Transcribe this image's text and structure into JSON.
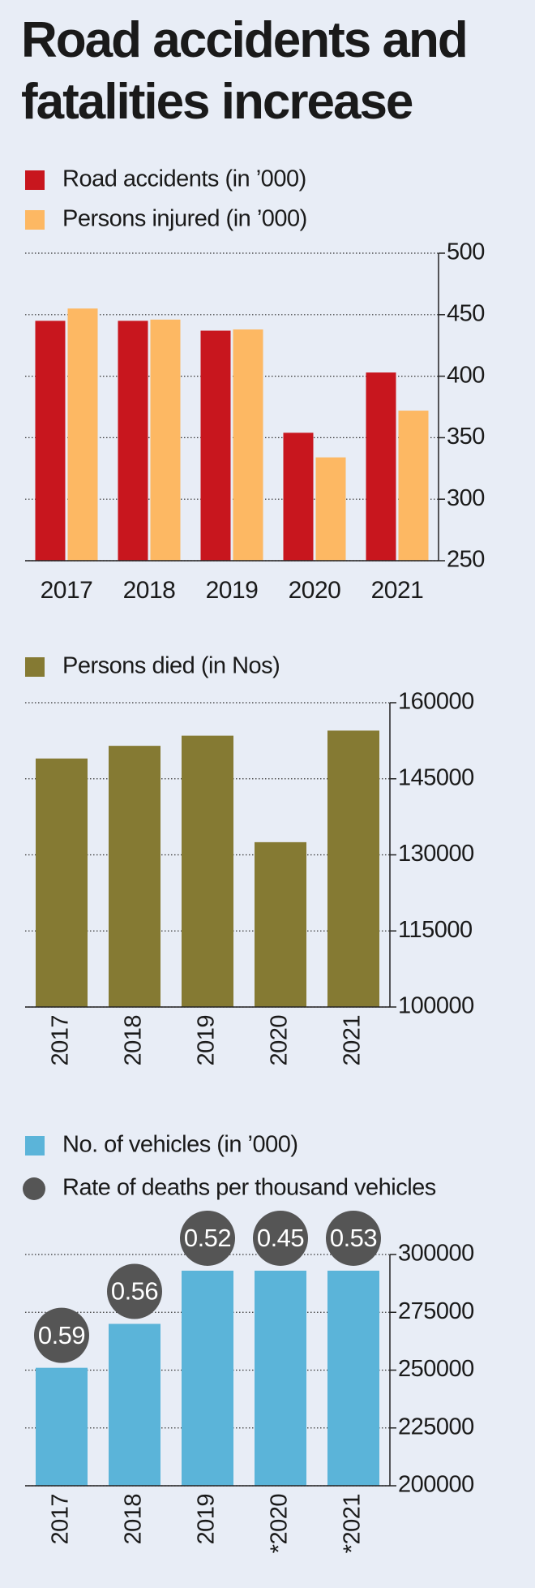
{
  "title": "Road accidents and fatalities increase",
  "chart_data": [
    {
      "type": "bar",
      "categories": [
        "2017",
        "2018",
        "2019",
        "2020",
        "2021"
      ],
      "series": [
        {
          "name": "Road accidents (in ’000)",
          "color": "#c8161e",
          "values": [
            445,
            445,
            437,
            354,
            403
          ]
        },
        {
          "name": "Persons injured (in ’000)",
          "color": "#fdb863",
          "values": [
            455,
            446,
            438,
            334,
            372
          ]
        }
      ],
      "ylim": [
        250,
        500
      ],
      "yticks": [
        250,
        300,
        350,
        400,
        450,
        500
      ],
      "grid": true
    },
    {
      "type": "bar",
      "categories": [
        "2017",
        "2018",
        "2019",
        "2020",
        "2021"
      ],
      "series": [
        {
          "name": "Persons died (in Nos)",
          "color": "#857a33",
          "values": [
            149000,
            151500,
            153500,
            132500,
            154500
          ]
        }
      ],
      "ylim": [
        100000,
        160000
      ],
      "yticks": [
        100000,
        115000,
        130000,
        145000,
        160000
      ],
      "grid": true
    },
    {
      "type": "bar",
      "categories": [
        "2017",
        "2018",
        "2019",
        "*2020",
        "*2021"
      ],
      "series": [
        {
          "name": "No. of vehicles (in ’000)",
          "color": "#5bb4d9",
          "values": [
            251000,
            270000,
            293000,
            293000,
            293000
          ]
        },
        {
          "name": "Rate of deaths per thousand vehicles",
          "color": "#555555",
          "type": "point",
          "values": [
            0.59,
            0.56,
            0.52,
            0.45,
            0.53
          ]
        }
      ],
      "ylim": [
        200000,
        300000
      ],
      "yticks": [
        200000,
        225000,
        250000,
        275000,
        300000
      ],
      "grid": true
    }
  ]
}
